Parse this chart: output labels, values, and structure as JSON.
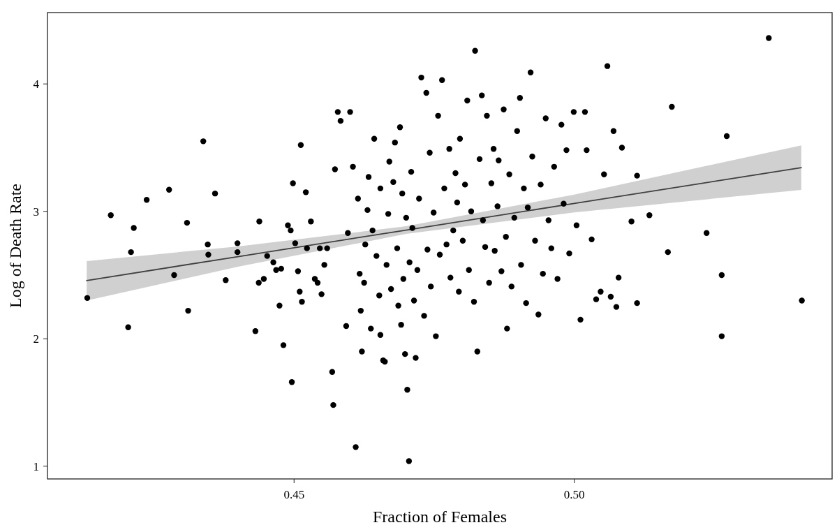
{
  "chart_data": {
    "type": "scatter",
    "xlabel": "Fraction of Females",
    "ylabel": "Log of Death Rate",
    "xlim": [
      0.406,
      0.546
    ],
    "ylim": [
      0.9,
      4.56
    ],
    "xticks": [
      0.45,
      {
        "value": 0.5,
        "label": "0.50"
      }
    ],
    "yticks": [
      1,
      2,
      3,
      4
    ],
    "grid": false,
    "series": [
      {
        "marker": "circle",
        "color": "#000000",
        "x": [
          0.4131,
          0.4173,
          0.4209,
          0.4214,
          0.4204,
          0.4237,
          0.4277,
          0.4286,
          0.4309,
          0.4311,
          0.4338,
          0.4346,
          0.4347,
          0.4359,
          0.4378,
          0.4399,
          0.4399,
          0.4431,
          0.4437,
          0.4446,
          0.4438,
          0.4452,
          0.4463,
          0.4468,
          0.4477,
          0.4474,
          0.4481,
          0.4489,
          0.4494,
          0.4496,
          0.4498,
          0.4502,
          0.4507,
          0.451,
          0.4512,
          0.4514,
          0.4521,
          0.4523,
          0.453,
          0.4537,
          0.4542,
          0.4546,
          0.4549,
          0.4554,
          0.4559,
          0.4568,
          0.457,
          0.4573,
          0.4578,
          0.4583,
          0.4593,
          0.4596,
          0.46,
          0.4605,
          0.461,
          0.4614,
          0.4617,
          0.4619,
          0.4621,
          0.4625,
          0.4627,
          0.4631,
          0.4633,
          0.4637,
          0.464,
          0.4643,
          0.4647,
          0.4652,
          0.4654,
          0.4654,
          0.4659,
          0.4662,
          0.4665,
          0.4668,
          0.467,
          0.4673,
          0.4677,
          0.468,
          0.4684,
          0.4686,
          0.4689,
          0.4691,
          0.4693,
          0.4695,
          0.4698,
          0.47,
          0.4702,
          0.4705,
          0.4706,
          0.4709,
          0.4711,
          0.4714,
          0.4717,
          0.472,
          0.4723,
          0.4727,
          0.4732,
          0.4736,
          0.4738,
          0.4742,
          0.4744,
          0.4749,
          0.4753,
          0.4757,
          0.476,
          0.4764,
          0.4768,
          0.4772,
          0.4777,
          0.4779,
          0.4784,
          0.4788,
          0.4791,
          0.4794,
          0.4796,
          0.4801,
          0.4805,
          0.4809,
          0.4812,
          0.4816,
          0.4821,
          0.4823,
          0.4827,
          0.4831,
          0.4835,
          0.4837,
          0.4841,
          0.4844,
          0.4848,
          0.4852,
          0.4856,
          0.4858,
          0.4863,
          0.4865,
          0.487,
          0.4874,
          0.4878,
          0.488,
          0.4884,
          0.4888,
          0.4893,
          0.4898,
          0.4903,
          0.4905,
          0.491,
          0.4914,
          0.4917,
          0.4922,
          0.4925,
          0.493,
          0.4936,
          0.494,
          0.4944,
          0.4949,
          0.4954,
          0.4959,
          0.4964,
          0.497,
          0.4977,
          0.4981,
          0.4986,
          0.4991,
          0.4999,
          0.5004,
          0.5011,
          0.5019,
          0.5022,
          0.5031,
          0.5039,
          0.5047,
          0.5053,
          0.5059,
          0.5065,
          0.507,
          0.5075,
          0.5079,
          0.5085,
          0.5102,
          0.5112,
          0.5112,
          0.5134,
          0.5167,
          0.5174,
          0.5236,
          0.5263,
          0.5263,
          0.5272,
          0.5347,
          0.5406
        ],
        "values": [
          2.32,
          2.97,
          2.68,
          2.87,
          2.09,
          3.09,
          3.17,
          2.5,
          2.91,
          2.22,
          3.55,
          2.74,
          2.66,
          3.14,
          2.46,
          2.75,
          2.68,
          2.06,
          2.44,
          2.47,
          2.92,
          2.65,
          2.6,
          2.54,
          2.55,
          2.26,
          1.95,
          2.89,
          2.85,
          1.66,
          3.22,
          2.75,
          2.53,
          2.37,
          3.52,
          2.29,
          3.15,
          2.71,
          2.92,
          2.47,
          2.44,
          2.71,
          2.35,
          2.58,
          2.71,
          1.74,
          1.48,
          3.33,
          3.78,
          3.71,
          2.1,
          2.83,
          3.78,
          3.35,
          1.15,
          3.1,
          2.51,
          2.22,
          1.9,
          2.44,
          2.74,
          3.01,
          3.27,
          2.08,
          2.85,
          3.57,
          2.65,
          2.34,
          2.03,
          3.18,
          1.83,
          1.82,
          2.58,
          2.98,
          3.39,
          2.39,
          3.23,
          3.54,
          2.71,
          2.26,
          3.66,
          2.11,
          3.14,
          2.47,
          1.88,
          2.95,
          1.6,
          1.04,
          2.6,
          3.31,
          2.87,
          2.3,
          1.85,
          2.54,
          3.1,
          4.05,
          2.18,
          3.93,
          2.7,
          3.46,
          2.41,
          2.99,
          2.02,
          3.75,
          2.66,
          4.03,
          3.18,
          2.74,
          3.49,
          2.48,
          2.85,
          3.3,
          3.07,
          2.37,
          3.57,
          2.77,
          3.21,
          3.87,
          2.54,
          3.0,
          2.29,
          4.26,
          1.9,
          3.41,
          3.91,
          2.93,
          2.72,
          3.75,
          2.44,
          3.22,
          3.49,
          2.69,
          3.04,
          3.4,
          2.53,
          3.8,
          2.8,
          2.08,
          3.29,
          2.41,
          2.95,
          3.63,
          3.89,
          2.58,
          3.18,
          2.28,
          3.03,
          4.09,
          3.43,
          2.77,
          2.19,
          3.21,
          2.51,
          3.73,
          2.93,
          2.71,
          3.35,
          2.47,
          3.68,
          3.06,
          3.48,
          2.67,
          3.78,
          2.89,
          2.15,
          3.78,
          3.48,
          2.78,
          2.31,
          2.37,
          3.29,
          4.14,
          2.33,
          3.63,
          2.25,
          2.48,
          3.5,
          2.92,
          3.28,
          2.28,
          2.97,
          2.68,
          3.82,
          2.83,
          2.5,
          2.02,
          3.59,
          4.36,
          2.3
        ]
      },
      {
        "type": "line",
        "marker": "none",
        "color": "#404040",
        "x": [
          0.413,
          0.44,
          0.47,
          0.5,
          0.5405
        ],
        "values": [
          2.457,
          2.645,
          2.853,
          3.062,
          3.343
        ],
        "lower": [
          2.3,
          2.565,
          2.823,
          2.992,
          3.168
        ],
        "upper": [
          2.61,
          2.725,
          2.883,
          3.132,
          3.518
        ]
      }
    ]
  }
}
